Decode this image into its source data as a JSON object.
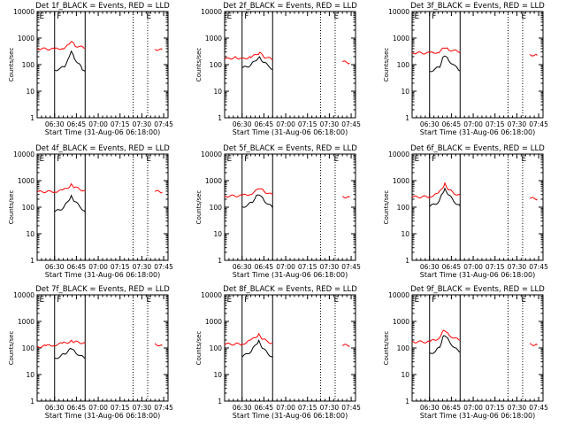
{
  "figure": {
    "title_suffix": "_BLACK = Events, RED = LLD",
    "ylabel": "Counts/sec",
    "xlabel": "Start Time (31-Aug-06 06:18:00)",
    "xticks": [
      "06:30",
      "06:45",
      "07:00",
      "07:15",
      "07:30",
      "07:45"
    ],
    "yticks": [
      "1",
      "10",
      "100",
      "1000",
      "10000"
    ],
    "ylog": true,
    "xlim_minutes": [
      0,
      90
    ],
    "colors": {
      "events": "#000000",
      "lld": "#ff0000",
      "axes": "#000000",
      "background": "#ffffff"
    }
  },
  "chart_data": [
    {
      "type": "line",
      "title": "Det 1f_BLACK = Events, RED = LLD",
      "flags": [
        "E",
        "F",
        "E"
      ],
      "series": [
        {
          "name": "BLACK = Events",
          "points": [
            [
              12,
              62
            ],
            [
              16,
              70
            ],
            [
              19,
              90
            ],
            [
              22,
              180
            ],
            [
              23.5,
              330
            ],
            [
              25.5,
              180
            ],
            [
              29,
              100
            ],
            [
              31,
              70
            ],
            [
              33,
              55
            ]
          ]
        },
        {
          "name": "RED = LLD",
          "points": [
            [
              0,
              400
            ],
            [
              12,
              380
            ],
            [
              18,
              420
            ],
            [
              22,
              550
            ],
            [
              23.5,
              760
            ],
            [
              26,
              520
            ],
            [
              30,
              460
            ],
            [
              33,
              430
            ]
          ]
        },
        {
          "name": "RED = LLD",
          "points": [
            [
              81,
              380
            ],
            [
              86,
              360
            ]
          ]
        }
      ],
      "vlines": [
        {
          "x": 12,
          "style": "solid"
        },
        {
          "x": 33,
          "style": "solid"
        },
        {
          "x": 66,
          "style": "dotted"
        },
        {
          "x": 76,
          "style": "dotted"
        }
      ]
    },
    {
      "type": "line",
      "title": "Det 2f_BLACK = Events, RED = LLD",
      "flags": [
        "E",
        "F",
        "E"
      ],
      "series": [
        {
          "name": "BLACK = Events",
          "points": [
            [
              12,
              75
            ],
            [
              16,
              85
            ],
            [
              19,
              110
            ],
            [
              22,
              160
            ],
            [
              24,
              190
            ],
            [
              27,
              120
            ],
            [
              31,
              85
            ],
            [
              33,
              65
            ]
          ]
        },
        {
          "name": "RED = LLD",
          "points": [
            [
              0,
              160
            ],
            [
              8,
              190
            ],
            [
              12,
              160
            ],
            [
              18,
              200
            ],
            [
              22,
              230
            ],
            [
              24,
              280
            ],
            [
              27,
              200
            ],
            [
              31,
              170
            ],
            [
              33,
              150
            ]
          ]
        },
        {
          "name": "RED = LLD",
          "points": [
            [
              81,
              130
            ],
            [
              86,
              115
            ]
          ]
        }
      ],
      "vlines": [
        {
          "x": 12,
          "style": "solid"
        },
        {
          "x": 33,
          "style": "solid"
        },
        {
          "x": 66,
          "style": "dotted"
        },
        {
          "x": 76,
          "style": "dotted"
        }
      ]
    },
    {
      "type": "line",
      "title": "Det 3f_BLACK = Events, RED = LLD",
      "flags": [
        "E",
        "F",
        "E"
      ],
      "series": [
        {
          "name": "BLACK = Events",
          "points": [
            [
              12,
              55
            ],
            [
              16,
              68
            ],
            [
              19,
              85
            ],
            [
              21,
              170
            ],
            [
              22.5,
              220
            ],
            [
              25,
              150
            ],
            [
              29,
              90
            ],
            [
              33,
              60
            ]
          ]
        },
        {
          "name": "RED = LLD",
          "points": [
            [
              0,
              280
            ],
            [
              12,
              270
            ],
            [
              18,
              300
            ],
            [
              21,
              380
            ],
            [
              22.5,
              430
            ],
            [
              25,
              370
            ],
            [
              29,
              330
            ],
            [
              33,
              310
            ]
          ]
        },
        {
          "name": "RED = LLD",
          "points": [
            [
              81,
              240
            ],
            [
              86,
              220
            ]
          ]
        }
      ],
      "vlines": [
        {
          "x": 12,
          "style": "solid"
        },
        {
          "x": 33,
          "style": "solid"
        },
        {
          "x": 66,
          "style": "dotted"
        },
        {
          "x": 76,
          "style": "dotted"
        }
      ]
    },
    {
      "type": "line",
      "title": "Det 4f_BLACK = Events, RED = LLD",
      "flags": [
        "E",
        "F",
        "E"
      ],
      "series": [
        {
          "name": "BLACK = Events",
          "points": [
            [
              12,
              68
            ],
            [
              16,
              80
            ],
            [
              19,
              110
            ],
            [
              22,
              200
            ],
            [
              23.5,
              260
            ],
            [
              26,
              160
            ],
            [
              30,
              100
            ],
            [
              33,
              65
            ]
          ]
        },
        {
          "name": "RED = LLD",
          "points": [
            [
              0,
              380
            ],
            [
              12,
              390
            ],
            [
              18,
              430
            ],
            [
              22,
              600
            ],
            [
              23.5,
              720
            ],
            [
              26,
              560
            ],
            [
              30,
              460
            ],
            [
              33,
              410
            ]
          ]
        },
        {
          "name": "RED = LLD",
          "points": [
            [
              81,
              400
            ],
            [
              86,
              370
            ]
          ]
        }
      ],
      "vlines": [
        {
          "x": 12,
          "style": "solid"
        },
        {
          "x": 33,
          "style": "solid"
        },
        {
          "x": 66,
          "style": "dotted"
        },
        {
          "x": 76,
          "style": "dotted"
        }
      ]
    },
    {
      "type": "line",
      "title": "Det 5f_BLACK = Events, RED = LLD",
      "flags": [
        "E",
        "F",
        "E"
      ],
      "series": [
        {
          "name": "BLACK = Events",
          "points": [
            [
              12,
              100
            ],
            [
              16,
              120
            ],
            [
              19,
              160
            ],
            [
              22,
              260
            ],
            [
              24,
              300
            ],
            [
              27,
              180
            ],
            [
              31,
              120
            ],
            [
              33,
              95
            ]
          ]
        },
        {
          "name": "RED = LLD",
          "points": [
            [
              0,
              260
            ],
            [
              12,
              270
            ],
            [
              18,
              320
            ],
            [
              22,
              420
            ],
            [
              24,
              520
            ],
            [
              27,
              400
            ],
            [
              31,
              320
            ],
            [
              33,
              290
            ]
          ]
        },
        {
          "name": "RED = LLD",
          "points": [
            [
              81,
              250
            ],
            [
              86,
              235
            ]
          ]
        }
      ],
      "vlines": [
        {
          "x": 12,
          "style": "solid"
        },
        {
          "x": 33,
          "style": "solid"
        },
        {
          "x": 66,
          "style": "dotted"
        },
        {
          "x": 76,
          "style": "dotted"
        }
      ]
    },
    {
      "type": "line",
      "title": "Det 6f_BLACK = Events, RED = LLD",
      "flags": [
        "E",
        "F",
        "E"
      ],
      "series": [
        {
          "name": "BLACK = Events",
          "points": [
            [
              12,
              110
            ],
            [
              16,
              130
            ],
            [
              19,
              180
            ],
            [
              21,
              360
            ],
            [
              22.5,
              480
            ],
            [
              25,
              300
            ],
            [
              29,
              160
            ],
            [
              33,
              110
            ]
          ]
        },
        {
          "name": "RED = LLD",
          "points": [
            [
              0,
              240
            ],
            [
              12,
              250
            ],
            [
              18,
              320
            ],
            [
              21,
              560
            ],
            [
              22.5,
              760
            ],
            [
              25,
              460
            ],
            [
              29,
              330
            ],
            [
              33,
              280
            ]
          ]
        },
        {
          "name": "RED = LLD",
          "points": [
            [
              81,
              220
            ],
            [
              86,
              200
            ]
          ]
        }
      ],
      "vlines": [
        {
          "x": 12,
          "style": "solid"
        },
        {
          "x": 33,
          "style": "solid"
        },
        {
          "x": 66,
          "style": "dotted"
        },
        {
          "x": 76,
          "style": "dotted"
        }
      ]
    },
    {
      "type": "line",
      "title": "Det 7f_BLACK = Events, RED = LLD",
      "flags": [
        "E",
        "F",
        "E"
      ],
      "series": [
        {
          "name": "BLACK = Events",
          "points": [
            [
              12,
              40
            ],
            [
              16,
              48
            ],
            [
              19,
              62
            ],
            [
              22,
              80
            ],
            [
              23.5,
              100
            ],
            [
              26,
              70
            ],
            [
              30,
              50
            ],
            [
              33,
              40
            ]
          ]
        },
        {
          "name": "RED = LLD",
          "points": [
            [
              0,
              110
            ],
            [
              6,
              120
            ],
            [
              12,
              130
            ],
            [
              18,
              150
            ],
            [
              22,
              170
            ],
            [
              23.5,
              190
            ],
            [
              26,
              170
            ],
            [
              30,
              160
            ],
            [
              33,
              150
            ]
          ]
        },
        {
          "name": "RED = LLD",
          "points": [
            [
              81,
              140
            ],
            [
              86,
              120
            ]
          ]
        }
      ],
      "vlines": [
        {
          "x": 12,
          "style": "solid"
        },
        {
          "x": 33,
          "style": "solid"
        },
        {
          "x": 66,
          "style": "dotted"
        },
        {
          "x": 76,
          "style": "dotted"
        }
      ]
    },
    {
      "type": "line",
      "title": "Det 8f_BLACK = Events, RED = LLD",
      "flags": [
        "E",
        "F",
        "E"
      ],
      "series": [
        {
          "name": "BLACK = Events",
          "points": [
            [
              12,
              48
            ],
            [
              16,
              60
            ],
            [
              19,
              85
            ],
            [
              22,
              150
            ],
            [
              23.5,
              180
            ],
            [
              26,
              100
            ],
            [
              30,
              60
            ],
            [
              33,
              45
            ]
          ]
        },
        {
          "name": "RED = LLD",
          "points": [
            [
              0,
              140
            ],
            [
              12,
              140
            ],
            [
              18,
              190
            ],
            [
              22,
              280
            ],
            [
              23.5,
              320
            ],
            [
              26,
              220
            ],
            [
              30,
              170
            ],
            [
              33,
              150
            ]
          ]
        },
        {
          "name": "RED = LLD",
          "points": [
            [
              81,
              130
            ],
            [
              86,
              120
            ]
          ]
        }
      ],
      "vlines": [
        {
          "x": 12,
          "style": "solid"
        },
        {
          "x": 33,
          "style": "solid"
        },
        {
          "x": 66,
          "style": "dotted"
        },
        {
          "x": 76,
          "style": "dotted"
        }
      ]
    },
    {
      "type": "line",
      "title": "Det 9f_BLACK = Events, RED = LLD",
      "flags": [
        "E",
        "F",
        "E"
      ],
      "series": [
        {
          "name": "BLACK = Events",
          "points": [
            [
              12,
              60
            ],
            [
              16,
              75
            ],
            [
              19,
              110
            ],
            [
              21,
              230
            ],
            [
              22.5,
              310
            ],
            [
              25,
              200
            ],
            [
              29,
              100
            ],
            [
              33,
              70
            ]
          ]
        },
        {
          "name": "RED = LLD",
          "points": [
            [
              0,
              170
            ],
            [
              12,
              170
            ],
            [
              18,
              230
            ],
            [
              21,
              390
            ],
            [
              22.5,
              470
            ],
            [
              25,
              320
            ],
            [
              29,
              230
            ],
            [
              33,
              200
            ]
          ]
        },
        {
          "name": "RED = LLD",
          "points": [
            [
              81,
              140
            ],
            [
              86,
              130
            ]
          ]
        }
      ],
      "vlines": [
        {
          "x": 12,
          "style": "solid"
        },
        {
          "x": 33,
          "style": "solid"
        },
        {
          "x": 66,
          "style": "dotted"
        },
        {
          "x": 76,
          "style": "dotted"
        }
      ]
    }
  ]
}
